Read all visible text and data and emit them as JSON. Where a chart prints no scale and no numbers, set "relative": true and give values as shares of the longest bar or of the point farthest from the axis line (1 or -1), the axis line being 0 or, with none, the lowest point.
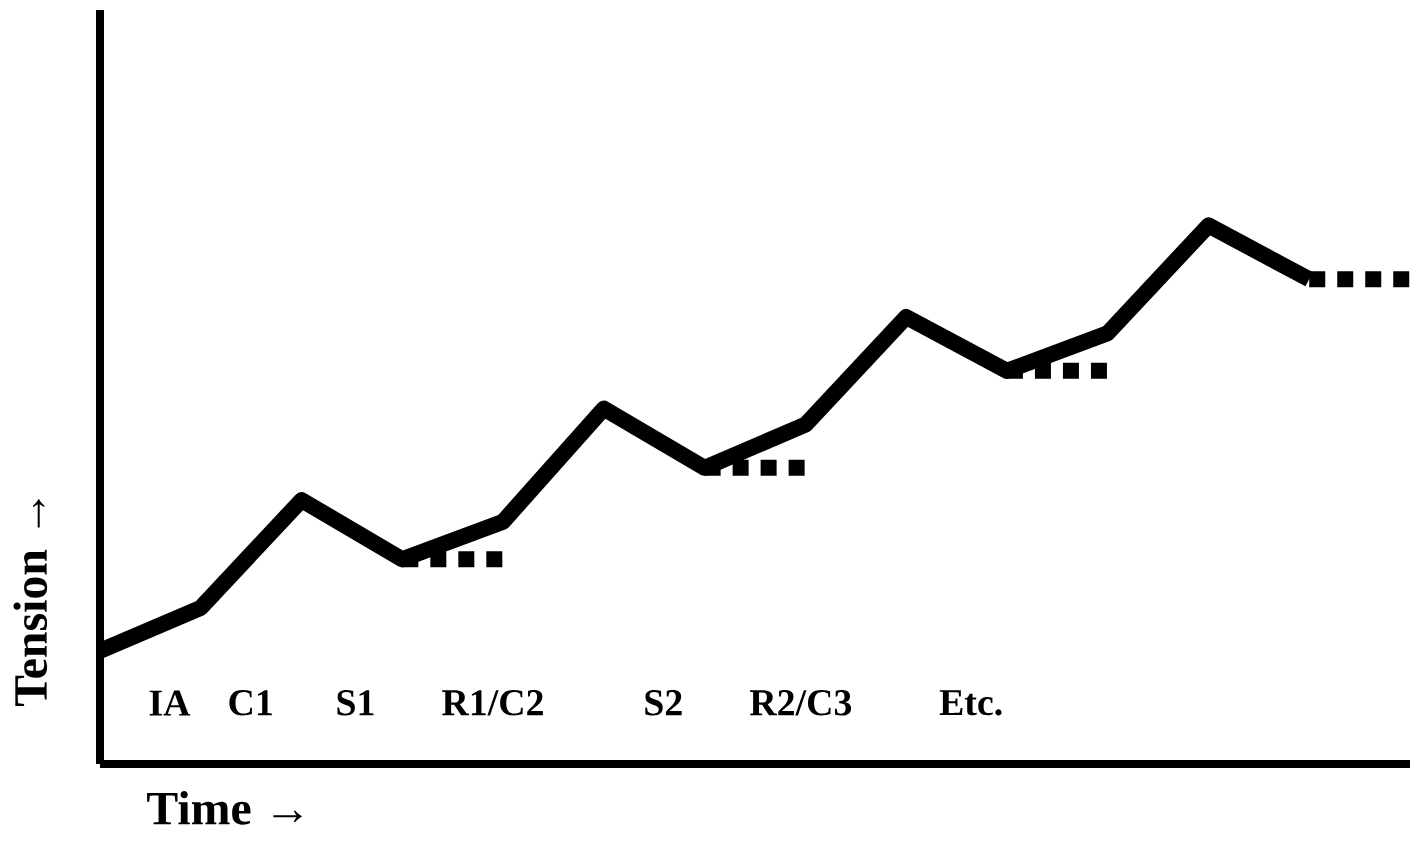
{
  "chart_data": {
    "type": "line",
    "relative": true,
    "xlabel": "Time →",
    "ylabel": "Tension →",
    "marker": "none",
    "categories": [
      null,
      null,
      null,
      null,
      null,
      null,
      null,
      null,
      null,
      null,
      null,
      null,
      null,
      null
    ],
    "series": [
      {
        "color": "#000000",
        "line_style": "solid",
        "values": [
          0.21,
          0.29,
          0.49,
          0.38,
          0.45,
          0.66,
          0.55,
          0.63,
          0.83,
          0.73,
          0.8,
          1,
          0.9,
          null
        ]
      },
      {
        "color": "#000000",
        "line_style": "dashed",
        "values": [
          null,
          null,
          null,
          0.38,
          0.38,
          null,
          null,
          null,
          null,
          null,
          null,
          null,
          null,
          null
        ]
      },
      {
        "color": "#000000",
        "line_style": "dashed",
        "values": [
          null,
          null,
          null,
          null,
          null,
          null,
          0.55,
          0.55,
          null,
          null,
          null,
          null,
          null,
          null
        ]
      },
      {
        "color": "#000000",
        "line_style": "dashed",
        "values": [
          null,
          null,
          null,
          null,
          null,
          null,
          null,
          null,
          null,
          0.73,
          0.73,
          null,
          null,
          null
        ]
      },
      {
        "color": "#000000",
        "line_style": "dashed",
        "values": [
          null,
          null,
          null,
          null,
          null,
          null,
          null,
          null,
          null,
          null,
          null,
          null,
          0.9,
          0.9
        ]
      }
    ],
    "annotations": [
      "IA",
      "C1",
      "S1",
      "R1/C2",
      "S2",
      "R2/C3",
      "Etc."
    ]
  }
}
